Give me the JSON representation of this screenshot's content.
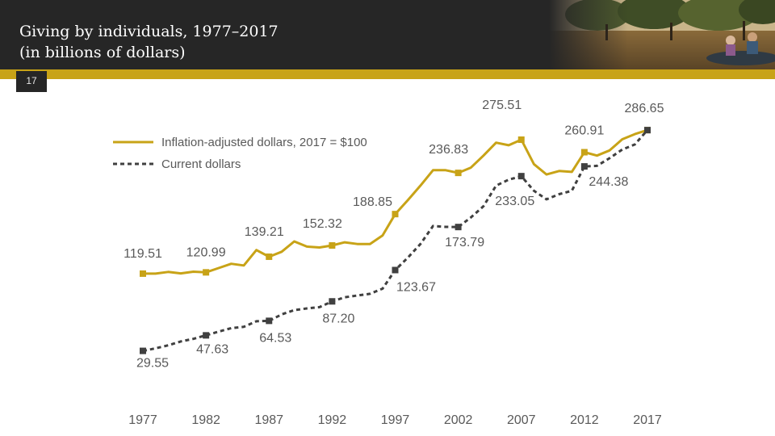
{
  "header": {
    "title_line1": "Giving by individuals, 1977–2017",
    "title_line2": "(in billions of dollars)",
    "slide_number": "17"
  },
  "colors": {
    "header_bg": "#262626",
    "accent_gold": "#c8a317",
    "inflation_series": "#c8a317",
    "current_series": "#404040",
    "text_gray": "#595959"
  },
  "chart_data": {
    "type": "line",
    "title": "Giving by individuals, 1977–2017 (in billions of dollars)",
    "xlabel": "",
    "ylabel": "",
    "x_ticks": [
      "1977",
      "1982",
      "1987",
      "1992",
      "1997",
      "2002",
      "2007",
      "2012",
      "2017"
    ],
    "xlim": [
      1977,
      2017
    ],
    "ylim": [
      0,
      300
    ],
    "grid": false,
    "legend_position": "top-left",
    "series": [
      {
        "name": "Inflation-adjusted dollars, 2017 = $100",
        "color": "#c8a317",
        "style": "solid",
        "x": [
          1977,
          1978,
          1979,
          1980,
          1981,
          1982,
          1983,
          1984,
          1985,
          1986,
          1987,
          1988,
          1989,
          1990,
          1991,
          1992,
          1993,
          1994,
          1995,
          1996,
          1997,
          1998,
          1999,
          2000,
          2001,
          2002,
          2003,
          2004,
          2005,
          2006,
          2007,
          2008,
          2009,
          2010,
          2011,
          2012,
          2013,
          2014,
          2015,
          2016,
          2017
        ],
        "values": [
          119.51,
          119.5,
          121.5,
          119.8,
          121.8,
          120.99,
          126,
          131,
          129,
          147,
          139.21,
          145,
          157,
          151,
          150,
          152.32,
          156,
          154,
          154,
          164,
          188.85,
          205,
          222,
          240,
          240,
          236.83,
          243,
          257,
          272,
          269,
          275.51,
          247,
          235,
          239,
          238,
          260.91,
          257,
          263,
          276,
          282,
          286.65
        ],
        "labeled_points": [
          {
            "x": 1977,
            "label": "119.51"
          },
          {
            "x": 1982,
            "label": "120.99"
          },
          {
            "x": 1987,
            "label": "139.21"
          },
          {
            "x": 1992,
            "label": "152.32"
          },
          {
            "x": 1997,
            "label": "188.85"
          },
          {
            "x": 2002,
            "label": "236.83"
          },
          {
            "x": 2007,
            "label": "275.51"
          },
          {
            "x": 2012,
            "label": "260.91"
          },
          {
            "x": 2017,
            "label": "286.65"
          }
        ]
      },
      {
        "name": "Current dollars",
        "color": "#404040",
        "style": "dashed",
        "x": [
          1977,
          1978,
          1979,
          1980,
          1981,
          1982,
          1983,
          1984,
          1985,
          1986,
          1987,
          1988,
          1989,
          1990,
          1991,
          1992,
          1993,
          1994,
          1995,
          1996,
          1997,
          1998,
          1999,
          2000,
          2001,
          2002,
          2003,
          2004,
          2005,
          2006,
          2007,
          2008,
          2009,
          2010,
          2011,
          2012,
          2013,
          2014,
          2015,
          2016,
          2017
        ],
        "values": [
          29.55,
          32.5,
          36,
          40.5,
          43.5,
          47.63,
          52,
          56,
          57.5,
          64,
          64.53,
          72,
          77,
          79,
          80.5,
          87.2,
          92,
          94,
          96,
          102,
          123.67,
          138,
          154,
          175,
          174,
          173.79,
          185,
          198,
          222,
          229,
          233.05,
          216,
          206,
          212,
          216,
          244.38,
          245,
          254,
          264,
          270,
          286.65
        ],
        "labeled_points": [
          {
            "x": 1977,
            "label": "29.55"
          },
          {
            "x": 1982,
            "label": "47.63"
          },
          {
            "x": 1987,
            "label": "64.53"
          },
          {
            "x": 1992,
            "label": "87.20"
          },
          {
            "x": 1997,
            "label": "123.67"
          },
          {
            "x": 2002,
            "label": "173.79"
          },
          {
            "x": 2007,
            "label": "233.05"
          },
          {
            "x": 2012,
            "label": "244.38"
          },
          {
            "x": 2017,
            "label": "286.65"
          }
        ]
      }
    ]
  }
}
